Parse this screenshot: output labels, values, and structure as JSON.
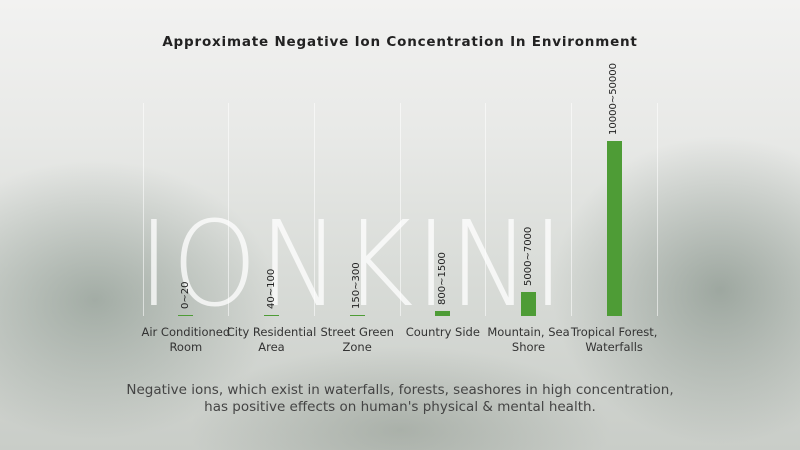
{
  "chart_data": {
    "type": "bar",
    "title": "Approximate Negative Ion Concentration In Environment",
    "watermark": "IONKINI",
    "categories": [
      "Air Conditioned Room",
      "City Residential Area",
      "Street Green Zone",
      "Country Side",
      "Mountain, Sea Shore",
      "Tropical Forest, Waterfalls"
    ],
    "values": [
      20,
      100,
      300,
      1500,
      7000,
      50000
    ],
    "value_labels": [
      "0~20",
      "40~100",
      "150~300",
      "800~1500",
      "5000~7000",
      "10000~50000"
    ],
    "color": "#4e9c36",
    "caption": [
      "Negative ions, which exist in waterfalls, forests, seashores in high concentration,",
      "has positive effects on human's physical & mental health."
    ]
  }
}
